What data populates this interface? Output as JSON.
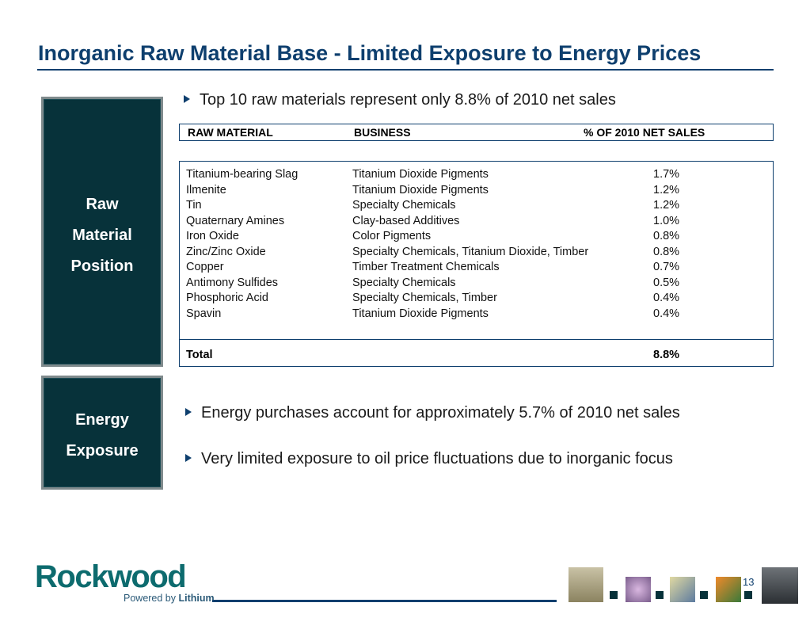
{
  "title": "Inorganic Raw Material Base - Limited Exposure to Energy Prices",
  "sidebar_raw": [
    "Raw",
    "Material",
    "Position"
  ],
  "sidebar_energy": [
    "Energy",
    "Exposure"
  ],
  "bullets": {
    "top": "Top 10 raw materials represent only 8.8% of 2010 net sales",
    "energy1": "Energy purchases account for approximately 5.7% of 2010 net sales",
    "energy2": "Very limited exposure to oil price fluctuations due to inorganic focus"
  },
  "table": {
    "headers": [
      "RAW MATERIAL",
      "BUSINESS",
      "% OF 2010 NET SALES"
    ],
    "rows": [
      [
        "Titanium-bearing Slag",
        "Titanium Dioxide Pigments",
        "1.7%"
      ],
      [
        "Ilmenite",
        "Titanium Dioxide Pigments",
        "1.2%"
      ],
      [
        "Tin",
        "Specialty Chemicals",
        "1.2%"
      ],
      [
        "Quaternary Amines",
        "Clay-based Additives",
        "1.0%"
      ],
      [
        "Iron Oxide",
        "Color Pigments",
        "0.8%"
      ],
      [
        "Zinc/Zinc Oxide",
        "Specialty Chemicals, Titanium Dioxide, Timber",
        "0.8%"
      ],
      [
        "Copper",
        "Timber Treatment Chemicals",
        "0.7%"
      ],
      [
        "Antimony Sulfides",
        "Specialty Chemicals",
        "0.5%"
      ],
      [
        "Phosphoric Acid",
        "Specialty Chemicals, Timber",
        "0.4%"
      ],
      [
        "Spavin",
        "Titanium Dioxide Pigments",
        "0.4%"
      ]
    ],
    "total_label": "Total",
    "total_value": "8.8%"
  },
  "logo": {
    "name": "Rockwood",
    "tagline_prefix": "Powered by",
    "tagline_brand": "Lithium"
  },
  "page_number": "13",
  "colors": {
    "navy": "#0e3f6e",
    "dark_teal": "#07323a",
    "logo_teal": "#0d6b6e"
  }
}
